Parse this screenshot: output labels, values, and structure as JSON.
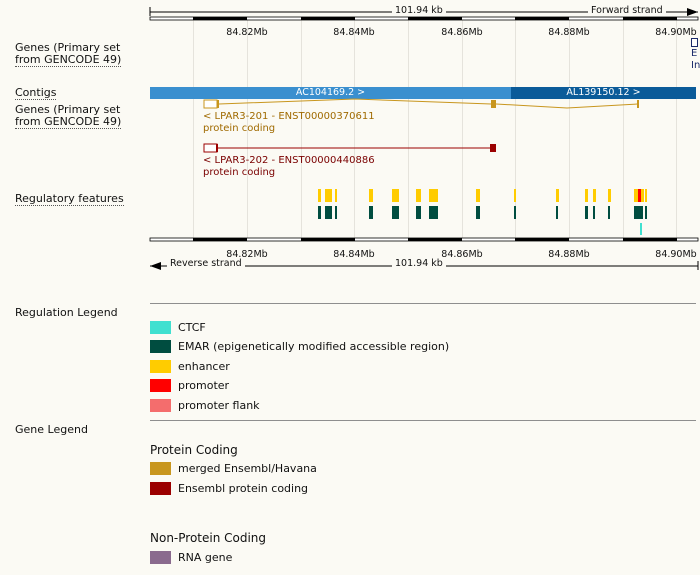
{
  "scale_bar": {
    "top_length": "101.94 kb",
    "top_strand": "Forward strand",
    "bottom_length": "101.94 kb",
    "bottom_strand": "Reverse strand"
  },
  "ticks": {
    "labels": [
      "84.82Mb",
      "84.84Mb",
      "84.86Mb",
      "84.88Mb",
      "84.90Mb"
    ]
  },
  "tracks": {
    "genes_top_label_line1": "Genes (Primary set",
    "genes_top_label_line2": "from GENCODE 49)",
    "genes_top_clip_line1": "E",
    "genes_top_clip_line2": "In",
    "contigs_label": "Contigs",
    "genes_bottom_label_line1": "Genes (Primary set",
    "genes_bottom_label_line2": "from GENCODE 49)",
    "regulatory_label": "Regulatory features"
  },
  "contigs": [
    {
      "name": "AC104169.2 >",
      "color": "#3a8fcf"
    },
    {
      "name": "AL139150.12 >",
      "color": "#0b5b99"
    }
  ],
  "transcripts": [
    {
      "title": "< LPAR3-201 - ENST00000370611",
      "biotype": "protein coding",
      "color": "#c8961e",
      "text_color": "#a06a00"
    },
    {
      "title": "< LPAR3-202 - ENST00000440886",
      "biotype": "protein coding",
      "color": "#9b0000",
      "text_color": "#7a0000"
    }
  ],
  "regulation_legend": {
    "title": "Regulation Legend",
    "items": [
      {
        "label": "CTCF",
        "color": "#40e0d0"
      },
      {
        "label": "EMAR (epigenetically modified accessible region)",
        "color": "#004d40"
      },
      {
        "label": "enhancer",
        "color": "#ffcc00"
      },
      {
        "label": "promoter",
        "color": "#ff0000"
      },
      {
        "label": "promoter flank",
        "color": "#f46d6d"
      }
    ]
  },
  "gene_legend": {
    "title": "Gene Legend",
    "protein_coding_heading": "Protein Coding",
    "protein_coding_items": [
      {
        "label": "merged Ensembl/Havana",
        "color": "#c8961e"
      },
      {
        "label": "Ensembl protein coding",
        "color": "#9b0000"
      }
    ],
    "non_protein_heading": "Non-Protein Coding",
    "non_protein_items": [
      {
        "label": "RNA gene",
        "color": "#8a6a8e"
      }
    ]
  }
}
